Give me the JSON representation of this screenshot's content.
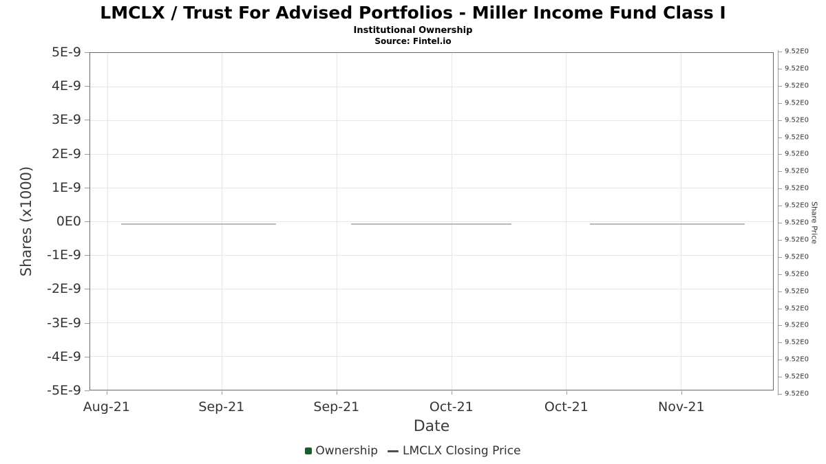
{
  "title": "LMCLX / Trust For Advised Portfolios - Miller Income Fund Class I",
  "subtitle": "Institutional Ownership",
  "source": "Source: Fintel.io",
  "chart_data": {
    "type": "combo",
    "title": "LMCLX / Trust For Advised Portfolios - Miller Income Fund Class I",
    "subtitle": "Institutional Ownership",
    "source": "Source: Fintel.io",
    "legend_position": "bottom",
    "grid": true,
    "x_axis": {
      "label": "Date",
      "tick_labels": [
        "Aug-21",
        "Sep-21",
        "Sep-21",
        "Oct-21",
        "Oct-21",
        "Nov-21"
      ],
      "tick_positions_pct": [
        2.5,
        19.3,
        36.1,
        52.9,
        69.7,
        86.5
      ]
    },
    "y_axis_left": {
      "label": "Shares (x1000)",
      "tick_labels": [
        "5E-9",
        "4E-9",
        "3E-9",
        "2E-9",
        "1E-9",
        "0E0",
        "-1E-9",
        "-2E-9",
        "-3E-9",
        "-4E-9",
        "-5E-9"
      ],
      "range": [
        -5e-09,
        5e-09
      ]
    },
    "y_axis_right": {
      "label": "Share Price",
      "tick_label": "9.52E0",
      "tick_count": 21,
      "tick_value": 9.52
    },
    "series": [
      {
        "name": "Ownership",
        "type": "bar",
        "color": "#1a5d2e",
        "categories": [
          "Aug-21",
          "Sep-21",
          "Sep-21",
          "Oct-21",
          "Oct-21",
          "Nov-21"
        ],
        "values": [
          0,
          0,
          0,
          0,
          0,
          0
        ]
      },
      {
        "name": "LMCLX Closing Price",
        "type": "line",
        "color": "#b9b9b9",
        "legend_marker_color": "#4d4d4d",
        "constant_value": 9.52,
        "baseline_pct": 50.6,
        "segments_pct": [
          [
            4.5,
            27.2
          ],
          [
            38.2,
            61.7
          ],
          [
            73.2,
            95.9
          ]
        ]
      }
    ]
  },
  "legend": {
    "items": [
      {
        "label": "Ownership",
        "marker": "square",
        "color": "#1a5d2e"
      },
      {
        "label": "LMCLX Closing Price",
        "marker": "line",
        "color": "#4d4d4d"
      }
    ]
  }
}
